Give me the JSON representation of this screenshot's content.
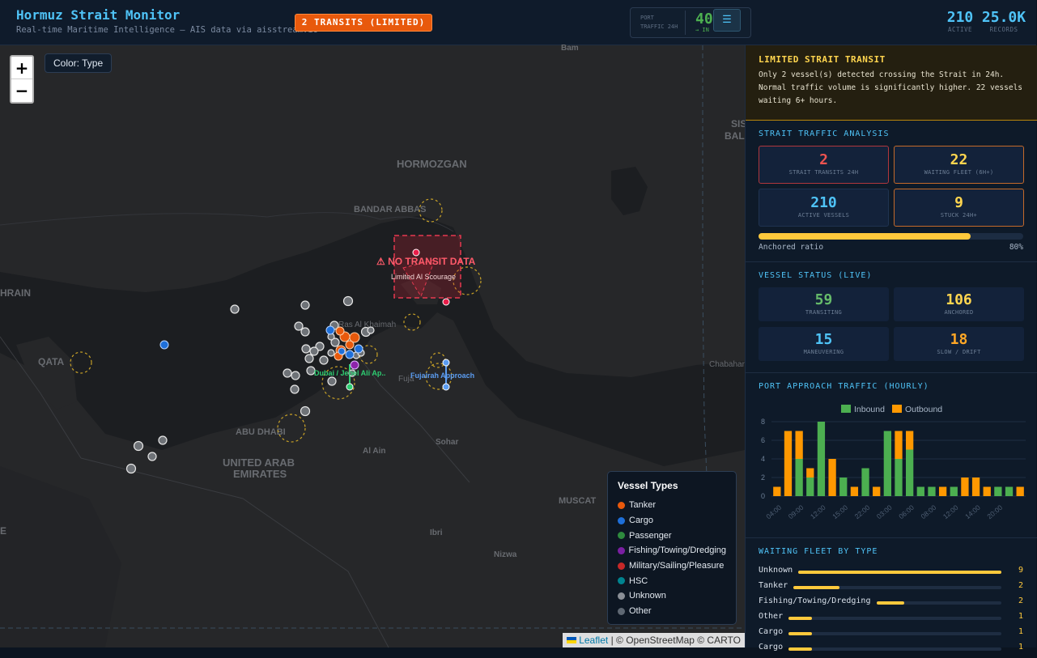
{
  "header": {
    "title": "Hormuz Strait Monitor",
    "subtitle": "Real-time Maritime Intelligence — AIS data via aisstream.io",
    "transit_badge": "2 TRANSITS (LIMITED)",
    "port": {
      "label_line1": "PORT",
      "label_line2": "TRAFFIC 24H",
      "count": "40",
      "direction": "→ IN",
      "menu_icon": "☰"
    },
    "active": {
      "value": "210",
      "label": "ACTIVE"
    },
    "records": {
      "value": "25.0K",
      "label": "RECORDS"
    }
  },
  "map": {
    "zoom_in": "+",
    "zoom_out": "−",
    "color_toggle": "Color: Type",
    "place_labels": [
      "Bam",
      "HORMOZGAN",
      "BANDAR ABBAS",
      "SIS",
      "BAL",
      "HRAIN",
      "QATA",
      "Ras Al Khaimah",
      "Fuja",
      "Chabahar",
      "ABU DHABI",
      "UNITED ARAB",
      "EMIRATES",
      "Al Ain",
      "Sohar",
      "MUSCAT",
      "Ibri",
      "Nizwa",
      "E"
    ],
    "no_transit_label": "⚠ NO TRANSIT DATA",
    "zone_label": "Limited Al Scourage",
    "port_label_dubai": "Dubai / Jebel Ali Ap..",
    "port_label_fujairah": "Fujairah Approach",
    "legend": {
      "title": "Vessel Types",
      "items": [
        {
          "label": "Tanker",
          "color": "#e8590c"
        },
        {
          "label": "Cargo",
          "color": "#1e6fd9"
        },
        {
          "label": "Passenger",
          "color": "#2e8b3e"
        },
        {
          "label": "Fishing/Towing/Dredging",
          "color": "#7b1fa2"
        },
        {
          "label": "Military/Sailing/Pleasure",
          "color": "#c62828"
        },
        {
          "label": "HSC",
          "color": "#00838f"
        },
        {
          "label": "Unknown",
          "color": "#8a8f96"
        },
        {
          "label": "Other",
          "color": "#5f6873"
        }
      ]
    },
    "attribution": {
      "leaflet": "Leaflet",
      "rest": " | © OpenStreetMap © CARTO"
    }
  },
  "sidebar": {
    "alert": {
      "title": "LIMITED STRAIT TRANSIT",
      "text": "Only 2 vessel(s) detected crossing the Strait in 24h. Normal traffic volume is significantly higher. 22 vessels waiting 6+ hours."
    },
    "analysis": {
      "title": "STRAIT TRAFFIC ANALYSIS",
      "cards": [
        {
          "value": "2",
          "label": "STRAIT TRANSITS 24H",
          "color": "#ef5350"
        },
        {
          "value": "22",
          "label": "WAITING FLEET (6H+)",
          "color": "#ffd54f"
        },
        {
          "value": "210",
          "label": "ACTIVE VESSELS",
          "color": "#4fc3f7"
        },
        {
          "value": "9",
          "label": "STUCK 24H+",
          "color": "#ffd54f"
        }
      ],
      "anchored_label": "Anchored ratio",
      "anchored_value": "80%",
      "anchored_ratio": 0.8
    },
    "status": {
      "title": "VESSEL STATUS (LIVE)",
      "cards": [
        {
          "value": "59",
          "label": "TRANSITING",
          "color": "#66bb6a"
        },
        {
          "value": "106",
          "label": "ANCHORED",
          "color": "#ffd54f"
        },
        {
          "value": "15",
          "label": "MANEUVERING",
          "color": "#4fc3f7"
        },
        {
          "value": "18",
          "label": "SLOW / DRIFT",
          "color": "#ffa726"
        }
      ]
    },
    "port_traffic": {
      "title": "PORT APPROACH TRAFFIC (HOURLY)"
    },
    "waiting_fleet": {
      "title": "WAITING FLEET BY TYPE",
      "max": 9,
      "rows": [
        {
          "label": "Unknown",
          "count": 9
        },
        {
          "label": "Tanker",
          "count": 2
        },
        {
          "label": "Fishing/Towing/Dredging",
          "count": 2
        },
        {
          "label": "Other",
          "count": 1
        },
        {
          "label": "Cargo",
          "count": 1
        },
        {
          "label": "Cargo",
          "count": 1
        }
      ]
    }
  },
  "chart_data": {
    "type": "bar",
    "stacked": true,
    "categories": [
      "04:00",
      "",
      "09:00",
      "",
      "12:00",
      "",
      "15:00",
      "",
      "22:00",
      "",
      "03:00",
      "",
      "06:00",
      "",
      "08:00",
      "",
      "12:00",
      "",
      "14:00",
      "",
      "20:00",
      "",
      ""
    ],
    "tick_labels": [
      "04:00",
      "09:00",
      "12:00",
      "15:00",
      "22:00",
      "03:00",
      "06:00",
      "08:00",
      "12:00",
      "14:00",
      "20:00"
    ],
    "series": [
      {
        "name": "Inbound",
        "color": "#4caf50",
        "values": [
          0,
          0,
          4,
          2,
          8,
          0,
          2,
          0,
          3,
          0,
          7,
          4,
          5,
          1,
          1,
          0,
          1,
          0,
          0,
          0,
          1,
          1,
          0
        ]
      },
      {
        "name": "Outbound",
        "color": "#ff9800",
        "values": [
          1,
          7,
          3,
          1,
          0,
          4,
          0,
          1,
          0,
          1,
          0,
          3,
          2,
          0,
          0,
          1,
          0,
          2,
          2,
          1,
          0,
          0,
          1
        ]
      }
    ],
    "ylim": [
      0,
      8
    ],
    "yticks": [
      0,
      2,
      4,
      6,
      8
    ],
    "legend_position": "top"
  }
}
